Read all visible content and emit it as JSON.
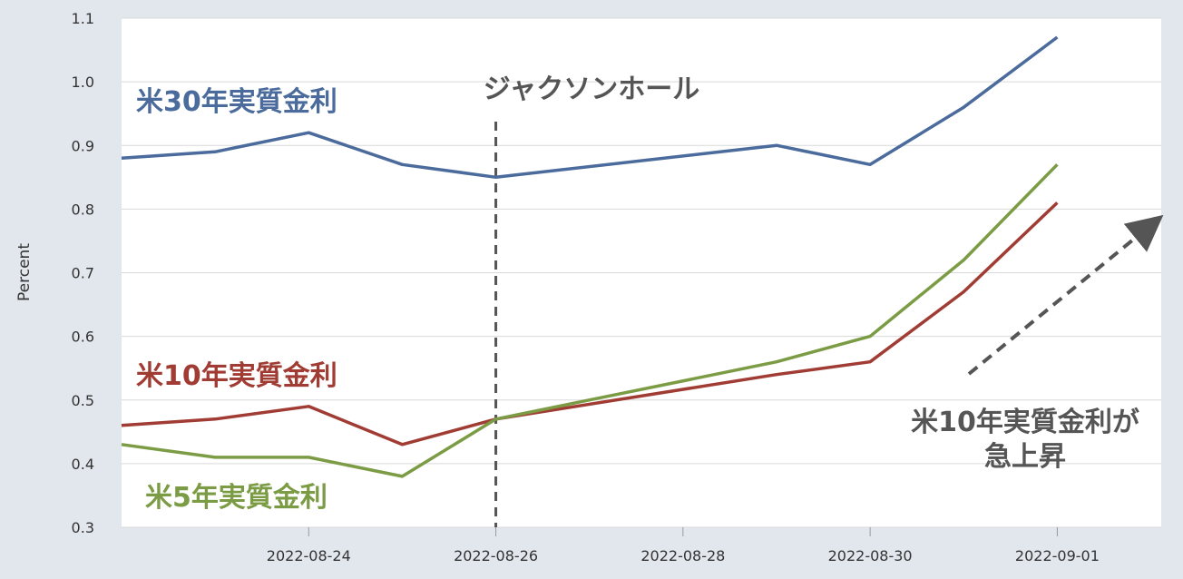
{
  "chart_data": {
    "type": "line",
    "xlabel": "",
    "ylabel": "Percent",
    "ylim": [
      0.3,
      1.1
    ],
    "y_ticks": [
      "0.3",
      "0.4",
      "0.5",
      "0.6",
      "0.7",
      "0.8",
      "0.9",
      "1.0",
      "1.1"
    ],
    "x_ticks": [
      "2022-08-24",
      "2022-08-26",
      "2022-08-28",
      "2022-08-30",
      "2022-09-01"
    ],
    "x": [
      "2022-08-22",
      "2022-08-23",
      "2022-08-24",
      "2022-08-25",
      "2022-08-26",
      "2022-08-29",
      "2022-08-30",
      "2022-08-31",
      "2022-09-01",
      "2022-09-02"
    ],
    "series": [
      {
        "name": "米30年実質金利",
        "color": "#4a6b9c",
        "values": [
          0.88,
          0.89,
          0.92,
          0.87,
          0.85,
          0.9,
          0.87,
          0.96,
          1.07,
          null
        ]
      },
      {
        "name": "米10年実質金利",
        "color": "#a03c33",
        "values": [
          0.46,
          0.47,
          0.49,
          0.43,
          0.47,
          0.54,
          0.56,
          0.67,
          0.81,
          null
        ]
      },
      {
        "name": "米5年実質金利",
        "color": "#7b9c44",
        "values": [
          0.43,
          0.41,
          0.41,
          0.38,
          0.47,
          0.56,
          0.6,
          0.72,
          0.87,
          null
        ]
      }
    ],
    "grid": true,
    "annotations": {
      "event_label": "ジャクソンホール",
      "event_date": "2022-08-26",
      "note_line1": "米10年実質金利が",
      "note_line2": "急上昇",
      "note_color": "#555555"
    }
  }
}
